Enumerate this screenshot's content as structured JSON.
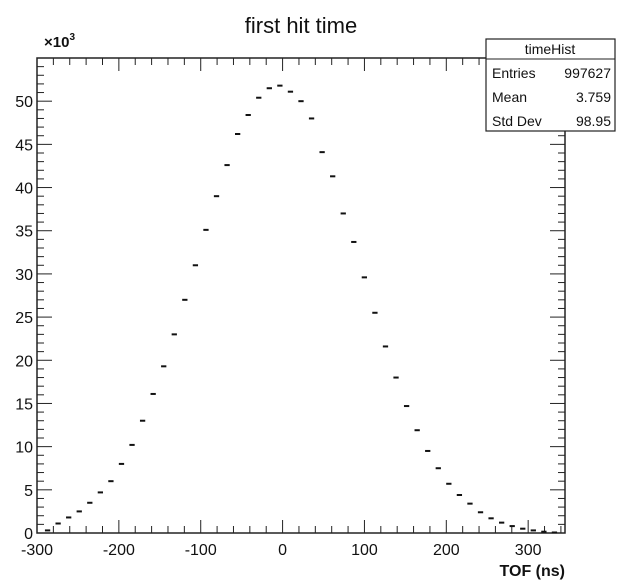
{
  "chart_data": {
    "type": "scatter",
    "title": "first hit time",
    "xlabel": "TOF (ns)",
    "ylabel": "",
    "y_multiplier_label": "×10",
    "y_multiplier_exp": "3",
    "xlim": [
      -300,
      345
    ],
    "ylim": [
      0,
      55000
    ],
    "x_ticks": [
      -300,
      -200,
      -100,
      0,
      100,
      200,
      300
    ],
    "y_ticks": [
      0,
      5000,
      10000,
      15000,
      20000,
      25000,
      30000,
      35000,
      40000,
      45000,
      50000
    ],
    "x_tick_labels": [
      "-300",
      "-200",
      "-100",
      "0",
      "100",
      "200",
      "300"
    ],
    "y_tick_labels": [
      "0",
      "5",
      "10",
      "15",
      "20",
      "25",
      "30",
      "35",
      "40",
      "45",
      "50"
    ],
    "bin_width": 12.9,
    "grid": false,
    "series": [
      {
        "x": [
          -287.1,
          -274.2,
          -261.3,
          -248.4,
          -235.5,
          -222.6,
          -209.7,
          -196.8,
          -183.9,
          -171.0,
          -158.1,
          -145.2,
          -132.3,
          -119.4,
          -106.5,
          -93.6,
          -80.7,
          -67.8,
          -54.9,
          -42.0,
          -29.1,
          -16.2,
          -3.3,
          9.6,
          22.5,
          35.4,
          48.3,
          61.2,
          74.1,
          87.0,
          99.9,
          112.8,
          125.7,
          138.6,
          151.5,
          164.4,
          177.3,
          190.2,
          203.1,
          216.0,
          228.9,
          241.8,
          254.7,
          267.6,
          280.5,
          293.4,
          306.3,
          319.2,
          332.1
        ],
        "values": [
          300,
          1100,
          1800,
          2500,
          3500,
          4700,
          6000,
          8000,
          10200,
          13000,
          16100,
          19300,
          23000,
          27000,
          31000,
          35100,
          39000,
          42600,
          46200,
          48400,
          50400,
          51500,
          51800,
          51100,
          50000,
          48000,
          44100,
          41300,
          37000,
          33700,
          29600,
          25500,
          21600,
          18000,
          14700,
          11900,
          9500,
          7500,
          5700,
          4400,
          3400,
          2400,
          1700,
          1200,
          800,
          500,
          300,
          150,
          60
        ]
      }
    ]
  },
  "stats_box": {
    "name": "timeHist",
    "rows": [
      {
        "label": "Entries",
        "value": "997627"
      },
      {
        "label": "Mean",
        "value": "3.759"
      },
      {
        "label": "Std Dev",
        "value": "98.95"
      }
    ]
  }
}
